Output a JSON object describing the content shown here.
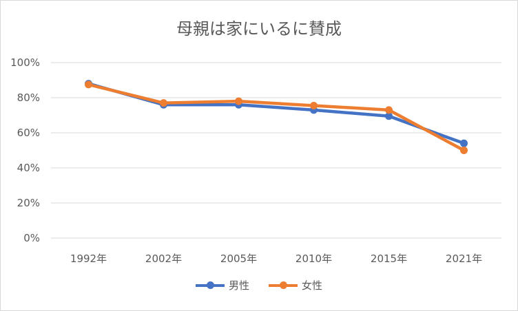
{
  "chart_data": {
    "type": "line",
    "title": "母親は家にいるに賛成",
    "categories": [
      "1992年",
      "2002年",
      "2005年",
      "2010年",
      "2015年",
      "2021年"
    ],
    "ylim": [
      0,
      100
    ],
    "y_ticks": [
      "0%",
      "20%",
      "40%",
      "60%",
      "80%",
      "100%"
    ],
    "y_tick_values": [
      0,
      20,
      40,
      60,
      80,
      100
    ],
    "grid": true,
    "legend_position": "bottom",
    "series": [
      {
        "name": "男性",
        "color": "#4472c4",
        "values": [
          88,
          76,
          76,
          73,
          69.5,
          54
        ]
      },
      {
        "name": "女性",
        "color": "#ed7d31",
        "values": [
          87.5,
          77,
          78,
          75.5,
          73,
          50
        ]
      }
    ]
  }
}
